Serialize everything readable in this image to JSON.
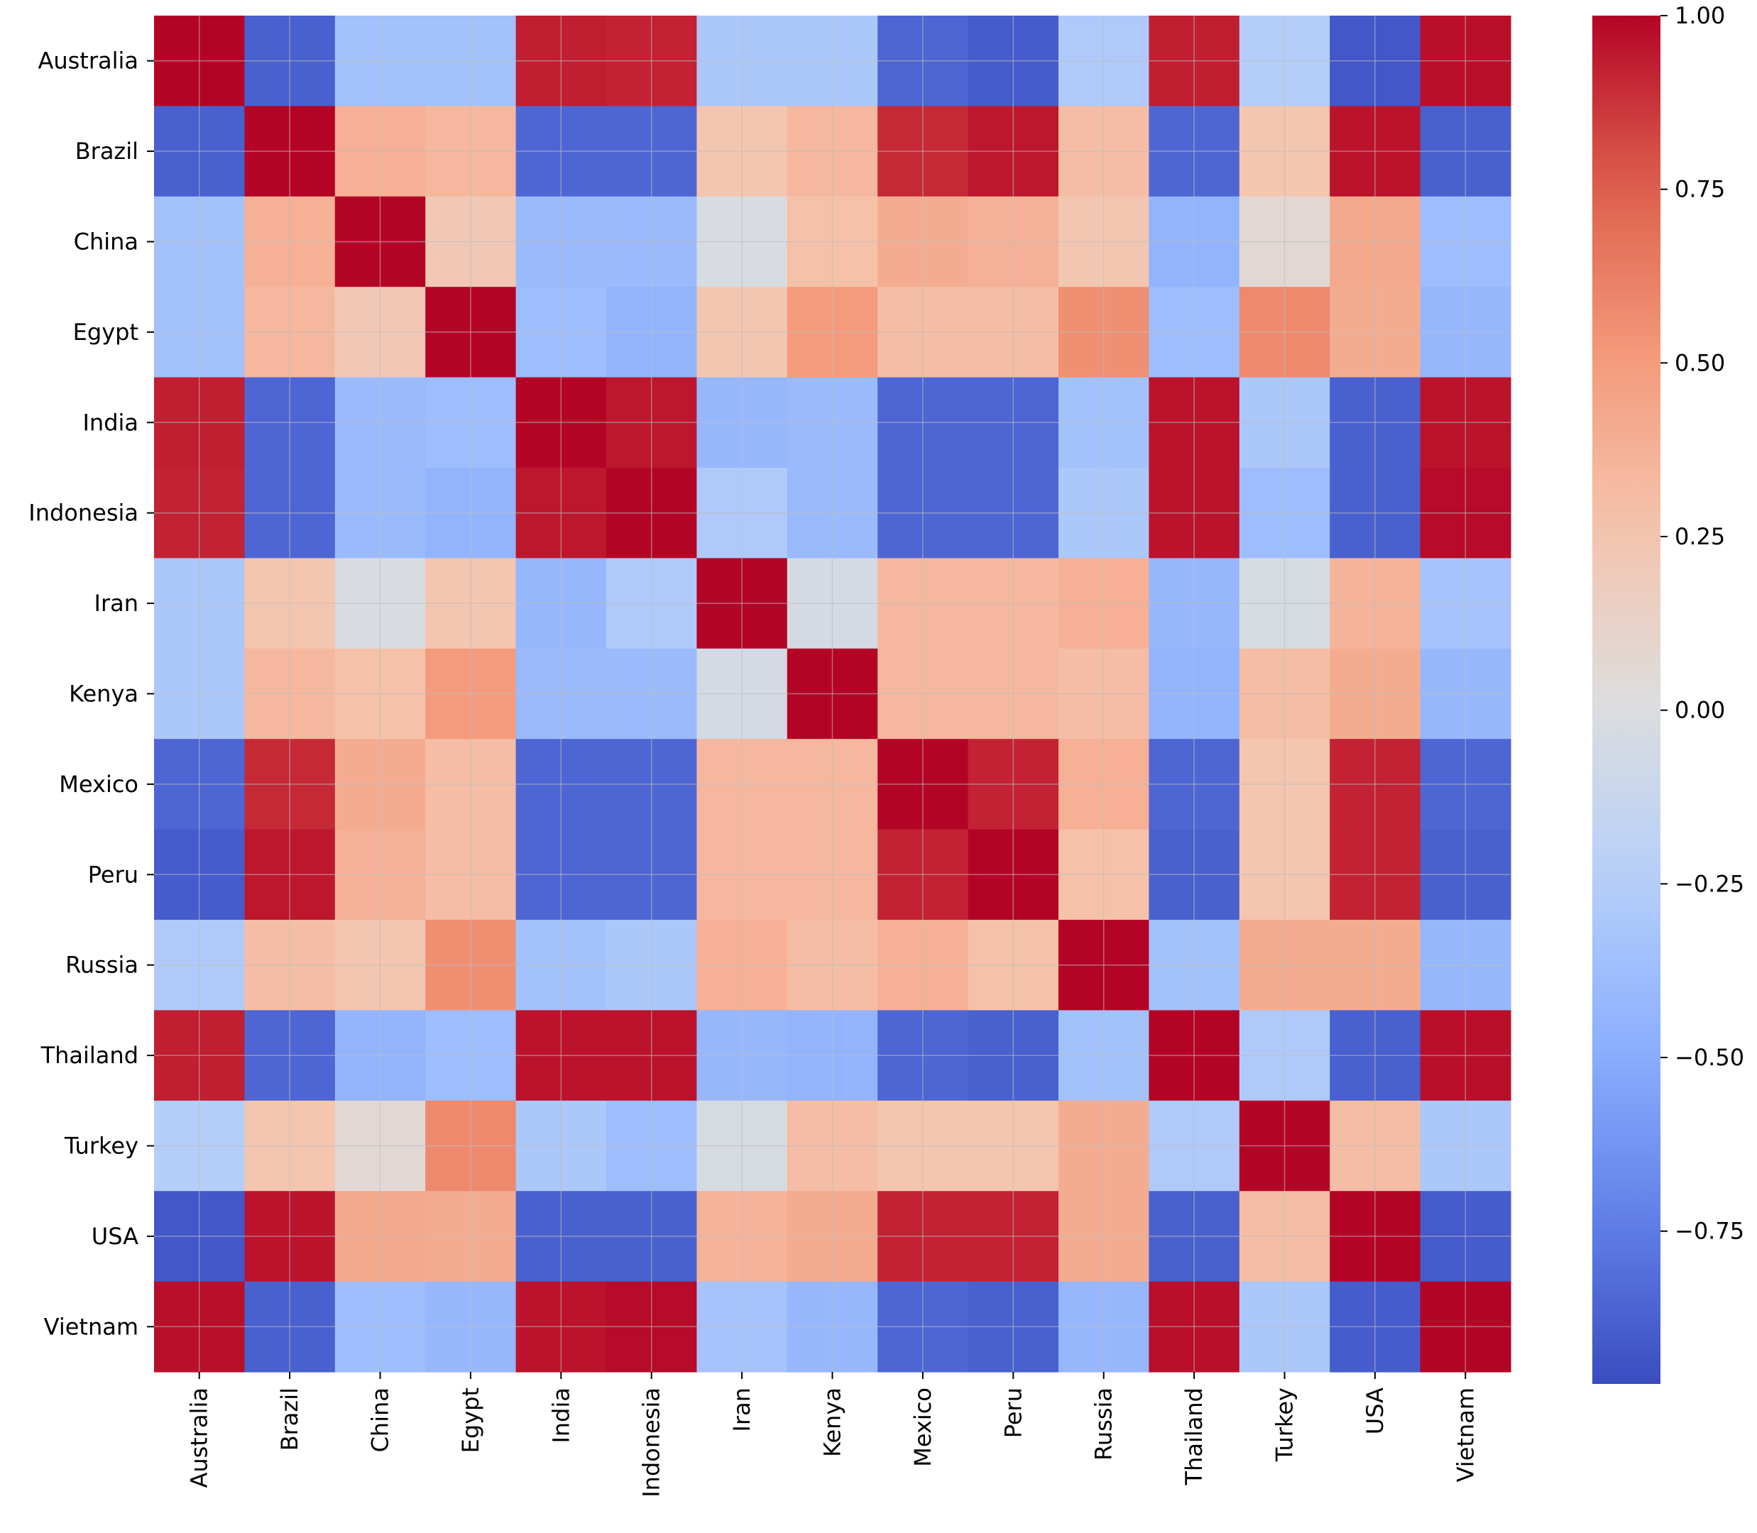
{
  "chart_data": {
    "type": "heatmap",
    "title": "",
    "xlabel": "",
    "ylabel": "",
    "colormap": "coolwarm",
    "vmin": -0.97,
    "vmax": 1.0,
    "grid": true,
    "rows": [
      "Australia",
      "Brazil",
      "China",
      "Egypt",
      "India",
      "Indonesia",
      "Iran",
      "Kenya",
      "Mexico",
      "Peru",
      "Russia",
      "Thailand",
      "Turkey",
      "USA",
      "Vietnam"
    ],
    "columns": [
      "Australia",
      "Brazil",
      "China",
      "Egypt",
      "India",
      "Indonesia",
      "Iran",
      "Kenya",
      "Mexico",
      "Peru",
      "Russia",
      "Thailand",
      "Turkey",
      "USA",
      "Vietnam"
    ],
    "values": [
      [
        1.0,
        -0.88,
        -0.35,
        -0.35,
        0.93,
        0.92,
        -0.3,
        -0.3,
        -0.85,
        -0.9,
        -0.28,
        0.93,
        -0.25,
        -0.92,
        0.97
      ],
      [
        -0.88,
        1.0,
        0.38,
        0.33,
        -0.85,
        -0.85,
        0.25,
        0.33,
        0.9,
        0.95,
        0.3,
        -0.85,
        0.25,
        0.96,
        -0.88
      ],
      [
        -0.35,
        0.38,
        1.0,
        0.22,
        -0.4,
        -0.4,
        -0.02,
        0.28,
        0.4,
        0.37,
        0.24,
        -0.45,
        0.06,
        0.42,
        -0.38
      ],
      [
        -0.35,
        0.33,
        0.22,
        1.0,
        -0.38,
        -0.45,
        0.24,
        0.5,
        0.3,
        0.3,
        0.55,
        -0.38,
        0.58,
        0.4,
        -0.42
      ],
      [
        0.93,
        -0.85,
        -0.4,
        -0.38,
        1.0,
        0.95,
        -0.42,
        -0.4,
        -0.85,
        -0.85,
        -0.35,
        0.96,
        -0.3,
        -0.88,
        0.96
      ],
      [
        0.92,
        -0.85,
        -0.4,
        -0.45,
        0.95,
        1.0,
        -0.28,
        -0.4,
        -0.85,
        -0.85,
        -0.3,
        0.96,
        -0.38,
        -0.88,
        0.98
      ],
      [
        -0.3,
        0.25,
        -0.02,
        0.24,
        -0.42,
        -0.28,
        1.0,
        -0.05,
        0.33,
        0.33,
        0.38,
        -0.42,
        -0.03,
        0.36,
        -0.33
      ],
      [
        -0.3,
        0.33,
        0.28,
        0.5,
        -0.4,
        -0.4,
        -0.05,
        1.0,
        0.33,
        0.33,
        0.3,
        -0.45,
        0.3,
        0.4,
        -0.42
      ],
      [
        -0.85,
        0.9,
        0.4,
        0.3,
        -0.85,
        -0.85,
        0.33,
        0.33,
        1.0,
        0.92,
        0.38,
        -0.85,
        0.25,
        0.92,
        -0.85
      ],
      [
        -0.9,
        0.95,
        0.37,
        0.3,
        -0.85,
        -0.85,
        0.33,
        0.33,
        0.92,
        1.0,
        0.28,
        -0.88,
        0.25,
        0.92,
        -0.88
      ],
      [
        -0.28,
        0.3,
        0.24,
        0.55,
        -0.35,
        -0.3,
        0.38,
        0.3,
        0.38,
        0.28,
        1.0,
        -0.35,
        0.4,
        0.4,
        -0.42
      ],
      [
        0.93,
        -0.85,
        -0.45,
        -0.38,
        0.96,
        0.96,
        -0.42,
        -0.45,
        -0.85,
        -0.88,
        -0.35,
        1.0,
        -0.28,
        -0.88,
        0.97
      ],
      [
        -0.25,
        0.25,
        0.06,
        0.58,
        -0.3,
        -0.38,
        -0.03,
        0.3,
        0.25,
        0.25,
        0.4,
        -0.28,
        1.0,
        0.3,
        -0.3
      ],
      [
        -0.92,
        0.96,
        0.42,
        0.4,
        -0.88,
        -0.88,
        0.36,
        0.4,
        0.92,
        0.92,
        0.4,
        -0.88,
        0.3,
        1.0,
        -0.9
      ],
      [
        0.97,
        -0.88,
        -0.38,
        -0.42,
        0.96,
        0.98,
        -0.33,
        -0.42,
        -0.85,
        -0.88,
        -0.42,
        0.97,
        -0.3,
        -0.9,
        1.0
      ]
    ],
    "colorbar": {
      "ticks": [
        1.0,
        0.75,
        0.5,
        0.25,
        0.0,
        -0.25,
        -0.5,
        -0.75
      ],
      "tick_labels": [
        "1.00",
        "0.75",
        "0.50",
        "0.25",
        "0.00",
        "−0.25",
        "−0.50",
        "−0.75"
      ]
    }
  }
}
